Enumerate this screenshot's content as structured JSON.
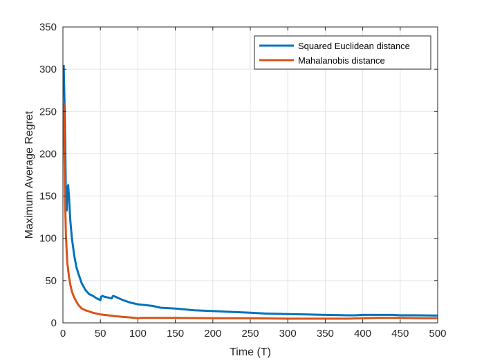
{
  "chart_data": {
    "type": "line",
    "title": "",
    "xlabel": "Time (T)",
    "ylabel": "Maximum Average Regret",
    "xlim": [
      0,
      500
    ],
    "ylim": [
      0,
      350
    ],
    "xticks": [
      "0",
      "50",
      "100",
      "150",
      "200",
      "250",
      "300",
      "350",
      "400",
      "450",
      "500"
    ],
    "yticks": [
      "0",
      "50",
      "100",
      "150",
      "200",
      "250",
      "300",
      "350"
    ],
    "grid": true,
    "legend_position": "top-right",
    "series": [
      {
        "name": "Squared Euclidean distance",
        "color": "#0072BD",
        "points": [
          [
            1,
            305
          ],
          [
            2,
            265
          ],
          [
            3,
            215
          ],
          [
            4,
            150
          ],
          [
            5,
            133
          ],
          [
            6,
            160
          ],
          [
            7,
            163
          ],
          [
            8,
            150
          ],
          [
            10,
            120
          ],
          [
            12,
            100
          ],
          [
            15,
            80
          ],
          [
            18,
            66
          ],
          [
            20,
            60
          ],
          [
            25,
            47
          ],
          [
            30,
            39
          ],
          [
            35,
            34
          ],
          [
            40,
            32
          ],
          [
            45,
            29
          ],
          [
            50,
            27
          ],
          [
            51,
            31
          ],
          [
            53,
            32
          ],
          [
            55,
            31
          ],
          [
            60,
            30
          ],
          [
            65,
            29
          ],
          [
            67,
            32
          ],
          [
            70,
            31
          ],
          [
            80,
            27
          ],
          [
            90,
            24
          ],
          [
            100,
            22
          ],
          [
            110,
            21
          ],
          [
            120,
            20
          ],
          [
            130,
            18
          ],
          [
            150,
            17
          ],
          [
            175,
            15
          ],
          [
            200,
            14
          ],
          [
            225,
            13
          ],
          [
            250,
            12
          ],
          [
            270,
            11
          ],
          [
            300,
            10.5
          ],
          [
            325,
            10
          ],
          [
            350,
            9.5
          ],
          [
            380,
            9
          ],
          [
            390,
            9
          ],
          [
            400,
            9.5
          ],
          [
            420,
            9.5
          ],
          [
            440,
            9.5
          ],
          [
            450,
            9
          ],
          [
            470,
            9
          ],
          [
            490,
            8.8
          ],
          [
            500,
            8.7
          ]
        ]
      },
      {
        "name": "Mahalanobis distance",
        "color": "#D95319",
        "points": [
          [
            1,
            260
          ],
          [
            2,
            200
          ],
          [
            3,
            140
          ],
          [
            4,
            105
          ],
          [
            5,
            85
          ],
          [
            6,
            70
          ],
          [
            8,
            55
          ],
          [
            10,
            45
          ],
          [
            12,
            37
          ],
          [
            15,
            30
          ],
          [
            20,
            22
          ],
          [
            25,
            17
          ],
          [
            30,
            15
          ],
          [
            40,
            12
          ],
          [
            50,
            10
          ],
          [
            60,
            9
          ],
          [
            70,
            8
          ],
          [
            80,
            7
          ],
          [
            90,
            6.5
          ],
          [
            100,
            5.5
          ],
          [
            105,
            6
          ],
          [
            120,
            6
          ],
          [
            150,
            6
          ],
          [
            200,
            5.5
          ],
          [
            250,
            5.5
          ],
          [
            300,
            5
          ],
          [
            350,
            5
          ],
          [
            380,
            5
          ],
          [
            400,
            5.5
          ],
          [
            420,
            6
          ],
          [
            450,
            6
          ],
          [
            480,
            5.5
          ],
          [
            500,
            5.5
          ]
        ]
      }
    ]
  }
}
